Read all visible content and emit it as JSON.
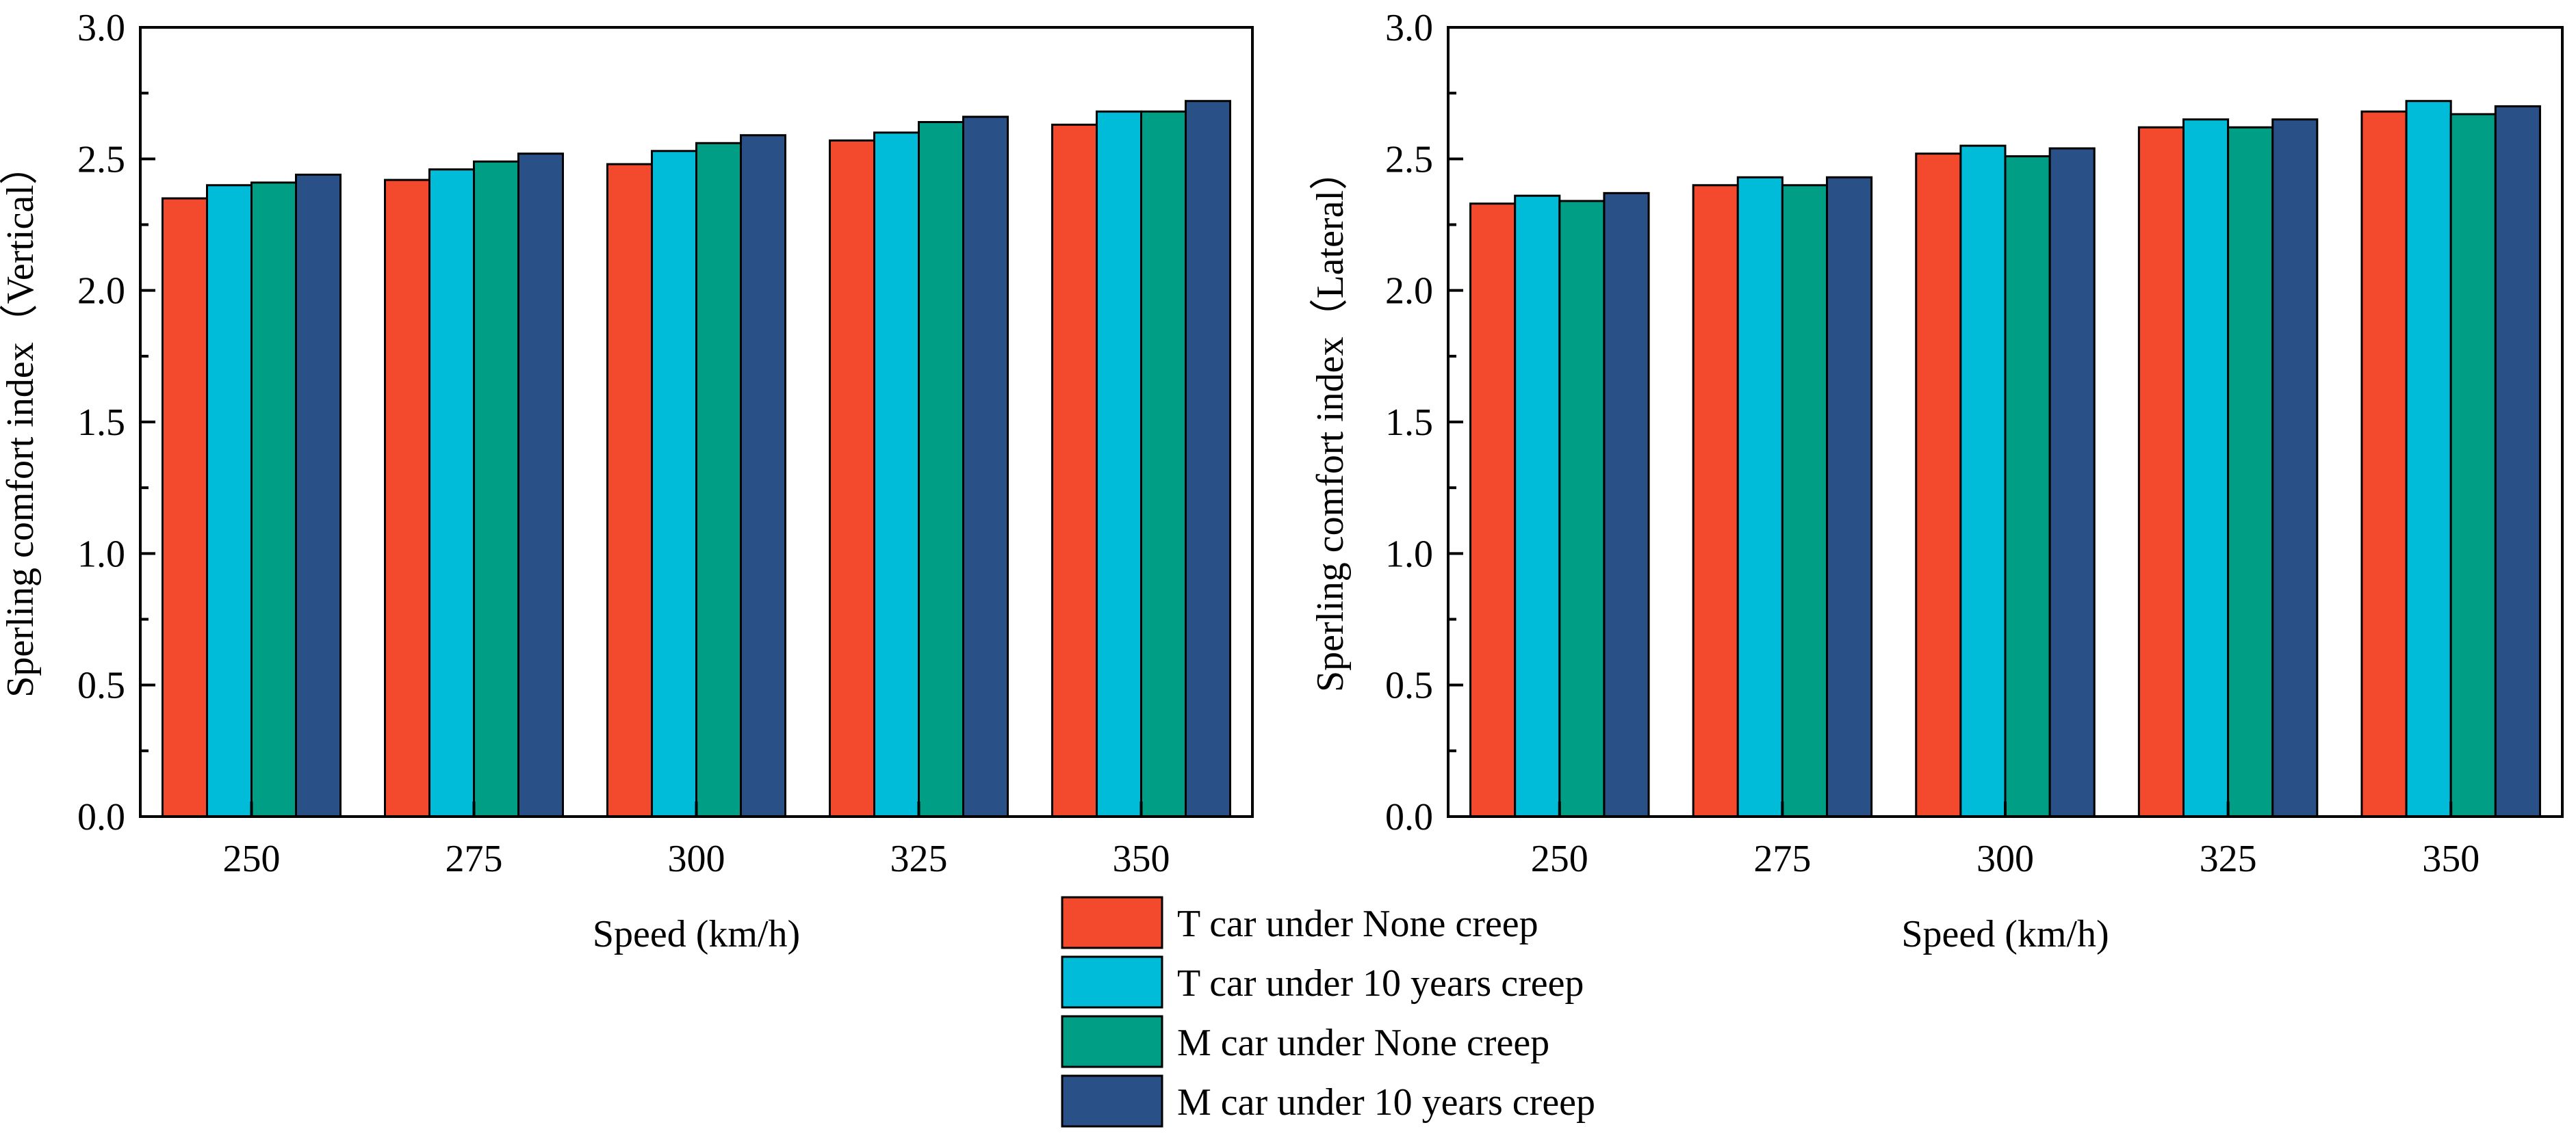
{
  "colors": {
    "t_none": "#F34A2E",
    "t_10y": "#00BCD8",
    "m_none": "#009E84",
    "m_10y": "#2A5088"
  },
  "legend": {
    "items": [
      {
        "key": "t_none",
        "label": "T car under None creep"
      },
      {
        "key": "t_10y",
        "label": "T car under 10 years creep"
      },
      {
        "key": "m_none",
        "label": "M car under None creep"
      },
      {
        "key": "m_10y",
        "label": "M car under 10 years creep"
      }
    ]
  },
  "chart_data": [
    {
      "type": "bar",
      "title": "",
      "xlabel": "Speed (km/h)",
      "ylabel": "Sperling comfort index（Vertical）",
      "ylim": [
        0,
        3.0
      ],
      "yticks": [
        "0.0",
        "0.5",
        "1.0",
        "1.5",
        "2.0",
        "2.5",
        "3.0"
      ],
      "categories": [
        "250",
        "275",
        "300",
        "325",
        "350"
      ],
      "series": [
        {
          "name": "T car under None creep",
          "key": "t_none",
          "values": [
            2.35,
            2.42,
            2.48,
            2.57,
            2.63
          ]
        },
        {
          "name": "T car under 10 years creep",
          "key": "t_10y",
          "values": [
            2.4,
            2.46,
            2.53,
            2.6,
            2.68
          ]
        },
        {
          "name": "M car under None creep",
          "key": "m_none",
          "values": [
            2.41,
            2.49,
            2.56,
            2.64,
            2.68
          ]
        },
        {
          "name": "M car under 10 years creep",
          "key": "m_10y",
          "values": [
            2.44,
            2.52,
            2.59,
            2.66,
            2.72
          ]
        }
      ]
    },
    {
      "type": "bar",
      "title": "",
      "xlabel": "Speed (km/h)",
      "ylabel": "Sperling comfort index（Lateral）",
      "ylim": [
        0,
        3.0
      ],
      "yticks": [
        "0.0",
        "0.5",
        "1.0",
        "1.5",
        "2.0",
        "2.5",
        "3.0"
      ],
      "categories": [
        "250",
        "275",
        "300",
        "325",
        "350"
      ],
      "series": [
        {
          "name": "T car under None creep",
          "key": "t_none",
          "values": [
            2.33,
            2.4,
            2.52,
            2.62,
            2.68
          ]
        },
        {
          "name": "T car under 10 years creep",
          "key": "t_10y",
          "values": [
            2.36,
            2.43,
            2.55,
            2.65,
            2.72
          ]
        },
        {
          "name": "M car under None creep",
          "key": "m_none",
          "values": [
            2.34,
            2.4,
            2.51,
            2.62,
            2.67
          ]
        },
        {
          "name": "M car under 10 years creep",
          "key": "m_10y",
          "values": [
            2.37,
            2.43,
            2.54,
            2.65,
            2.7
          ]
        }
      ]
    }
  ]
}
